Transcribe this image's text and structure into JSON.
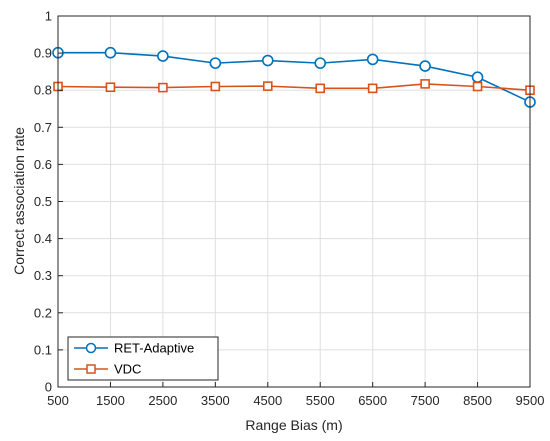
{
  "chart_data": {
    "type": "line",
    "title": "",
    "xlabel": "Range Bias (m)",
    "ylabel": "Correct association rate",
    "x": [
      500,
      1500,
      2500,
      3500,
      4500,
      5500,
      6500,
      7500,
      8500,
      9500
    ],
    "xlim": [
      500,
      9500
    ],
    "ylim": [
      0,
      1
    ],
    "xticks": [
      "500",
      "1500",
      "2500",
      "3500",
      "4500",
      "5500",
      "6500",
      "7500",
      "8500",
      "9500"
    ],
    "yticks": [
      "0",
      "0.1",
      "0.2",
      "0.3",
      "0.4",
      "0.5",
      "0.6",
      "0.7",
      "0.8",
      "0.9",
      "1"
    ],
    "grid": true,
    "legend_position": "bottom-left",
    "series": [
      {
        "name": "RET-Adaptive",
        "color": "#0072BD",
        "marker": "circle",
        "values": [
          0.901,
          0.901,
          0.892,
          0.873,
          0.88,
          0.873,
          0.883,
          0.865,
          0.835,
          0.768
        ]
      },
      {
        "name": "VDC",
        "color": "#D95319",
        "marker": "square",
        "values": [
          0.81,
          0.808,
          0.807,
          0.81,
          0.811,
          0.805,
          0.805,
          0.817,
          0.81,
          0.8
        ]
      }
    ]
  }
}
